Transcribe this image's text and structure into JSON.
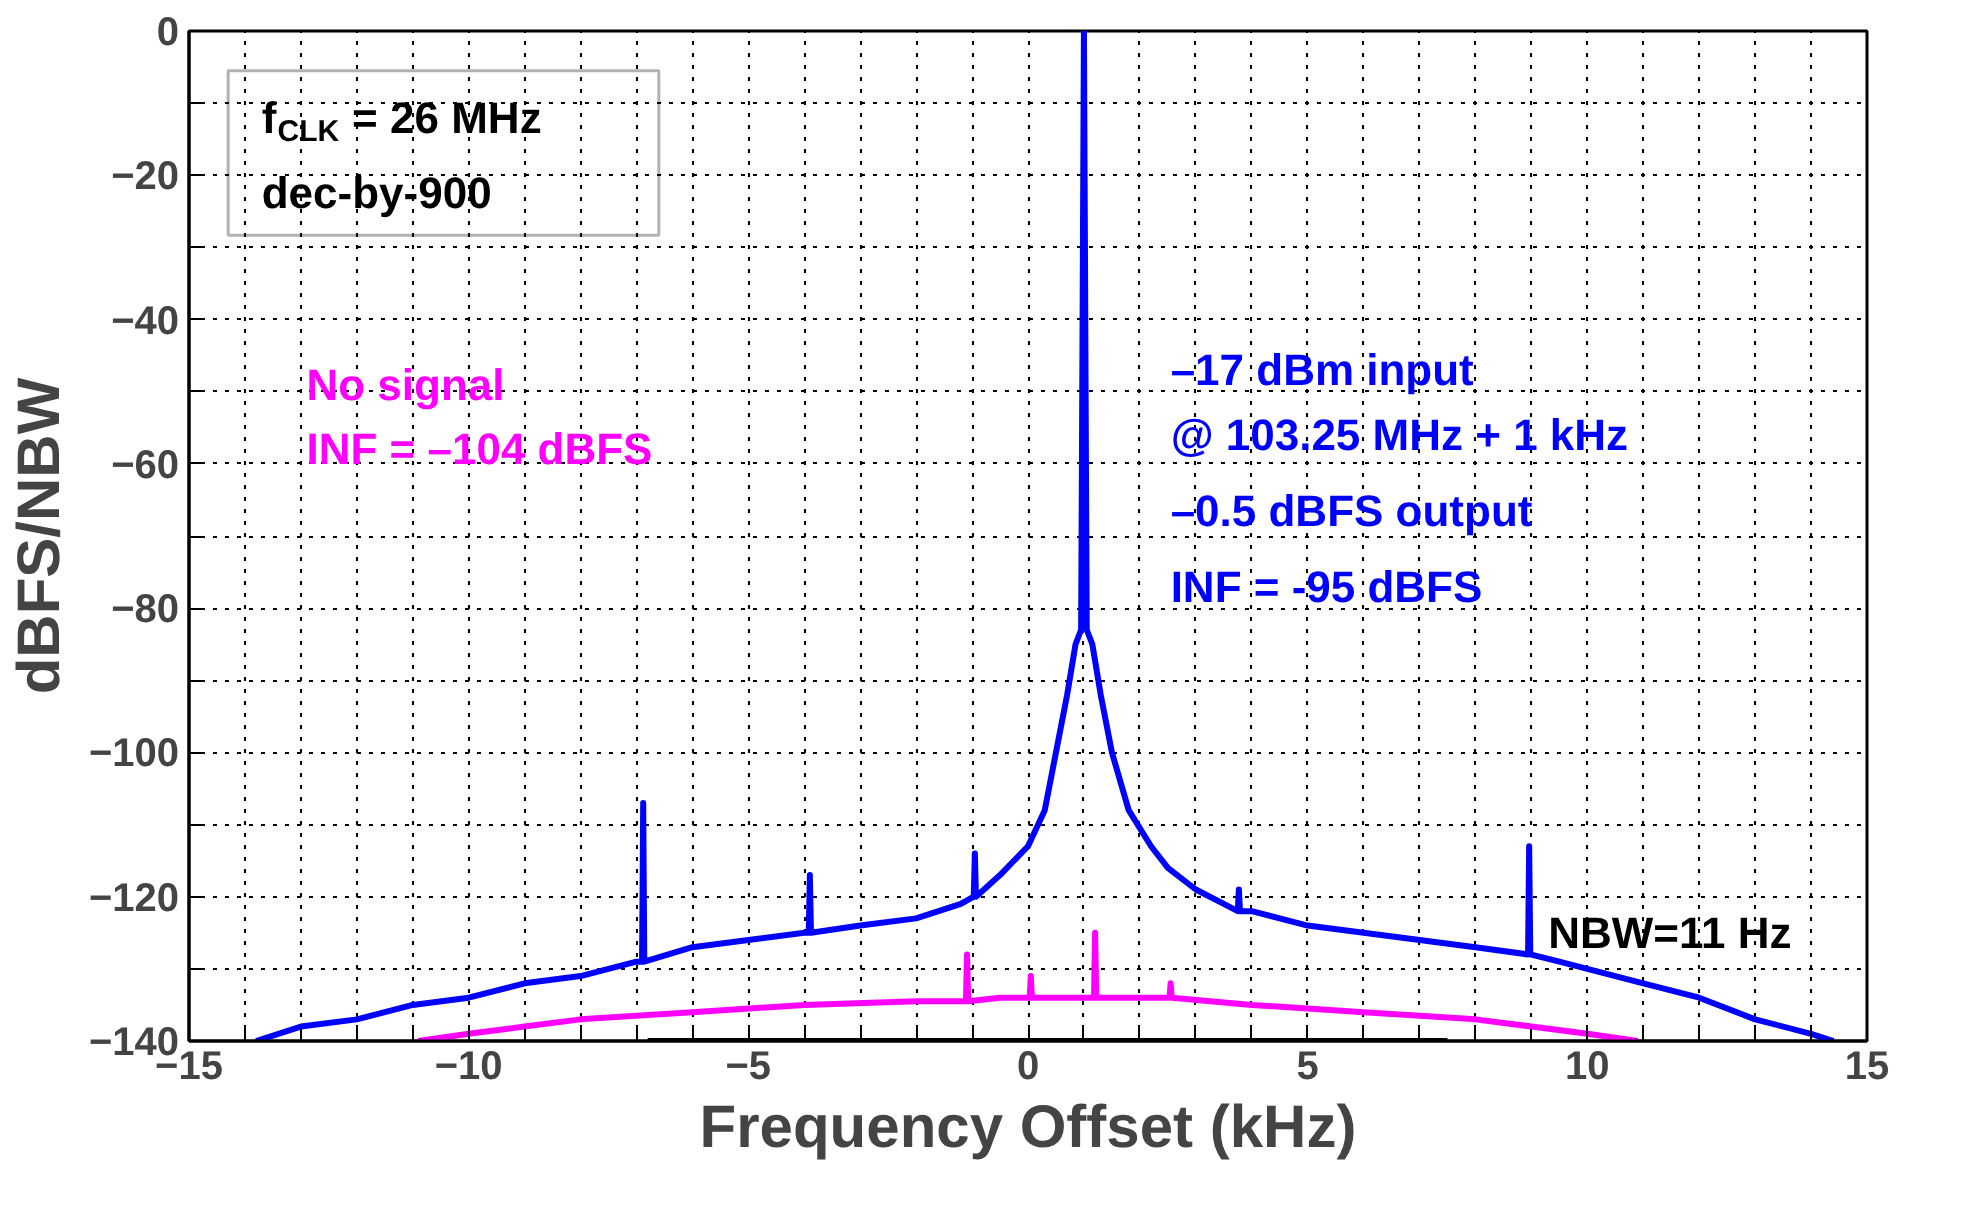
{
  "chart_data": {
    "type": "line",
    "xlabel": "Frequency Offset (kHz)",
    "ylabel": "dBFS/NBW",
    "annotations": [
      "f$_{CLK}$ = 26 MHz",
      "dec-by-900",
      "No signal",
      "INF = –104 dBFS",
      "–17 dBm input",
      "@ 103.25 MHz + 1 kHz",
      "–0.5 dBFS output",
      "INF = -95 dBFS",
      "NBW=11 Hz"
    ],
    "xlim": [
      -15,
      15
    ],
    "ylim": [
      -140,
      0
    ],
    "xticks": [
      -15,
      {
        "value": -14,
        "label": null
      },
      {
        "value": -13,
        "label": null
      },
      {
        "value": -12,
        "label": null
      },
      {
        "value": -11,
        "label": null
      },
      -10,
      {
        "value": -9,
        "label": null
      },
      {
        "value": -8,
        "label": null
      },
      {
        "value": -7,
        "label": null
      },
      {
        "value": -6,
        "label": null
      },
      -5,
      {
        "value": -4,
        "label": null
      },
      {
        "value": -3,
        "label": null
      },
      {
        "value": -2,
        "label": null
      },
      {
        "value": -1,
        "label": null
      },
      0,
      {
        "value": 1,
        "label": null
      },
      {
        "value": 2,
        "label": null
      },
      {
        "value": 3,
        "label": null
      },
      {
        "value": 4,
        "label": null
      },
      5,
      {
        "value": 6,
        "label": null
      },
      {
        "value": 7,
        "label": null
      },
      {
        "value": 8,
        "label": null
      },
      {
        "value": 9,
        "label": null
      },
      10,
      {
        "value": 11,
        "label": null
      },
      {
        "value": 12,
        "label": null
      },
      {
        "value": 13,
        "label": null
      },
      {
        "value": 14,
        "label": null
      },
      15
    ],
    "yticks": [
      -140,
      {
        "value": -130,
        "label": null
      },
      -120,
      {
        "value": -110,
        "label": null
      },
      -100,
      {
        "value": -90,
        "label": null
      },
      -80,
      {
        "value": -70,
        "label": null
      },
      -60,
      {
        "value": -50,
        "label": null
      },
      -40,
      {
        "value": -30,
        "label": null
      },
      -20,
      {
        "value": -10,
        "label": null
      },
      0
    ],
    "grid": true,
    "line_style": "solid",
    "marker": "none",
    "series": [
      {
        "color": "#0000ff",
        "x": [
          -13.8,
          -13,
          -12,
          -11,
          -10,
          -9,
          -8,
          -7,
          -6.9,
          -6.88,
          -6.86,
          -6,
          -5,
          -4,
          -3.92,
          -3.9,
          -3.88,
          -3,
          -2,
          -1.2,
          -0.97,
          -0.95,
          -0.93,
          -0.5,
          0,
          0.3,
          0.5,
          0.7,
          0.85,
          0.95,
          1.0,
          1.05,
          1.15,
          1.3,
          1.5,
          1.8,
          2.2,
          2.5,
          3,
          3.5,
          3.75,
          3.77,
          3.79,
          4,
          5,
          6,
          7,
          8,
          8.94,
          8.96,
          8.98,
          9.5,
          10,
          11,
          12,
          13,
          14,
          14.4
        ],
        "values": [
          -140,
          -138,
          -137,
          -135,
          -134,
          -132,
          -131,
          -129,
          -129,
          -107,
          -129,
          -127,
          -126,
          -125,
          -125,
          -117,
          -125,
          -124,
          -123,
          -121,
          -120,
          -114,
          -120,
          -117,
          -113,
          -108,
          -100,
          -92,
          -85,
          -83,
          0,
          -83,
          -85,
          -92,
          -100,
          -108,
          -113,
          -116,
          -119,
          -121,
          -122,
          -119,
          -122,
          -122,
          -124,
          -125,
          -126,
          -127,
          -128,
          -113,
          -128,
          -129,
          -130,
          -132,
          -134,
          -137,
          -139,
          -140
        ]
      },
      {
        "color": "#ff00ff",
        "x": [
          -10.9,
          -10,
          -9,
          -8,
          -6,
          -4,
          -2,
          -1.11,
          -1.09,
          -1.07,
          -0.5,
          0.03,
          0.05,
          0.07,
          1.0,
          1.18,
          1.2,
          1.22,
          2,
          2.53,
          2.55,
          2.57,
          4,
          6,
          8,
          9,
          10,
          10.9
        ],
        "values": [
          -140,
          -139,
          -138,
          -137,
          -136,
          -135,
          -134.5,
          -134.5,
          -128,
          -134.5,
          -134,
          -134,
          -131,
          -134,
          -134,
          -134,
          -125,
          -134,
          -134,
          -134,
          -132,
          -134,
          -135,
          -136,
          -137,
          -138,
          -139,
          -140
        ]
      },
      {
        "color": "#000000",
        "x": [
          -6.8,
          7.5
        ],
        "values": [
          -140,
          -140
        ]
      }
    ]
  }
}
